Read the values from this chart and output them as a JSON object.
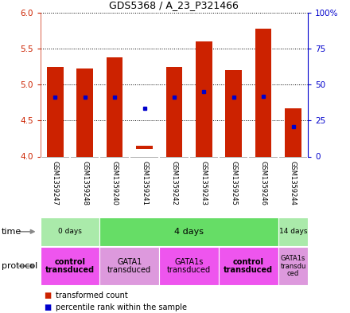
{
  "title": "GDS5368 / A_23_P321466",
  "samples": [
    "GSM1359247",
    "GSM1359248",
    "GSM1359240",
    "GSM1359241",
    "GSM1359242",
    "GSM1359243",
    "GSM1359245",
    "GSM1359246",
    "GSM1359244"
  ],
  "bar_bottoms": [
    4.0,
    4.0,
    4.0,
    4.1,
    4.0,
    4.0,
    4.0,
    4.0,
    4.0
  ],
  "bar_tops": [
    5.25,
    5.22,
    5.38,
    4.15,
    5.25,
    5.6,
    5.2,
    5.78,
    4.67
  ],
  "percentile_vals": [
    4.82,
    4.82,
    4.82,
    4.67,
    4.82,
    4.9,
    4.82,
    4.84,
    4.42
  ],
  "ylim_left": [
    4.0,
    6.0
  ],
  "ylim_right": [
    0,
    100
  ],
  "yticks_left": [
    4.0,
    4.5,
    5.0,
    5.5,
    6.0
  ],
  "yticks_right": [
    0,
    25,
    50,
    75,
    100
  ],
  "ytick_labels_right": [
    "0",
    "25",
    "50",
    "75",
    "100%"
  ],
  "bar_color": "#cc2200",
  "dot_color": "#0000cc",
  "time_groups": [
    {
      "label": "0 days",
      "start": 0,
      "end": 2,
      "color": "#aaeaaa"
    },
    {
      "label": "4 days",
      "start": 2,
      "end": 8,
      "color": "#66dd66"
    },
    {
      "label": "14 days",
      "start": 8,
      "end": 9,
      "color": "#aaeaaa"
    }
  ],
  "protocol_groups": [
    {
      "label": "control\ntransduced",
      "start": 0,
      "end": 2,
      "color": "#ee55ee",
      "bold": true
    },
    {
      "label": "GATA1\ntransduced",
      "start": 2,
      "end": 4,
      "color": "#dd99dd",
      "bold": false
    },
    {
      "label": "GATA1s\ntransduced",
      "start": 4,
      "end": 6,
      "color": "#ee55ee",
      "bold": false
    },
    {
      "label": "control\ntransduced",
      "start": 6,
      "end": 8,
      "color": "#ee55ee",
      "bold": true
    },
    {
      "label": "GATA1s\ntransdu\nced",
      "start": 8,
      "end": 9,
      "color": "#dd99dd",
      "bold": false
    }
  ],
  "sample_area_color": "#cccccc",
  "left_axis_color": "#cc2200",
  "right_axis_color": "#0000cc",
  "legend_red_label": "transformed count",
  "legend_blue_label": "percentile rank within the sample"
}
